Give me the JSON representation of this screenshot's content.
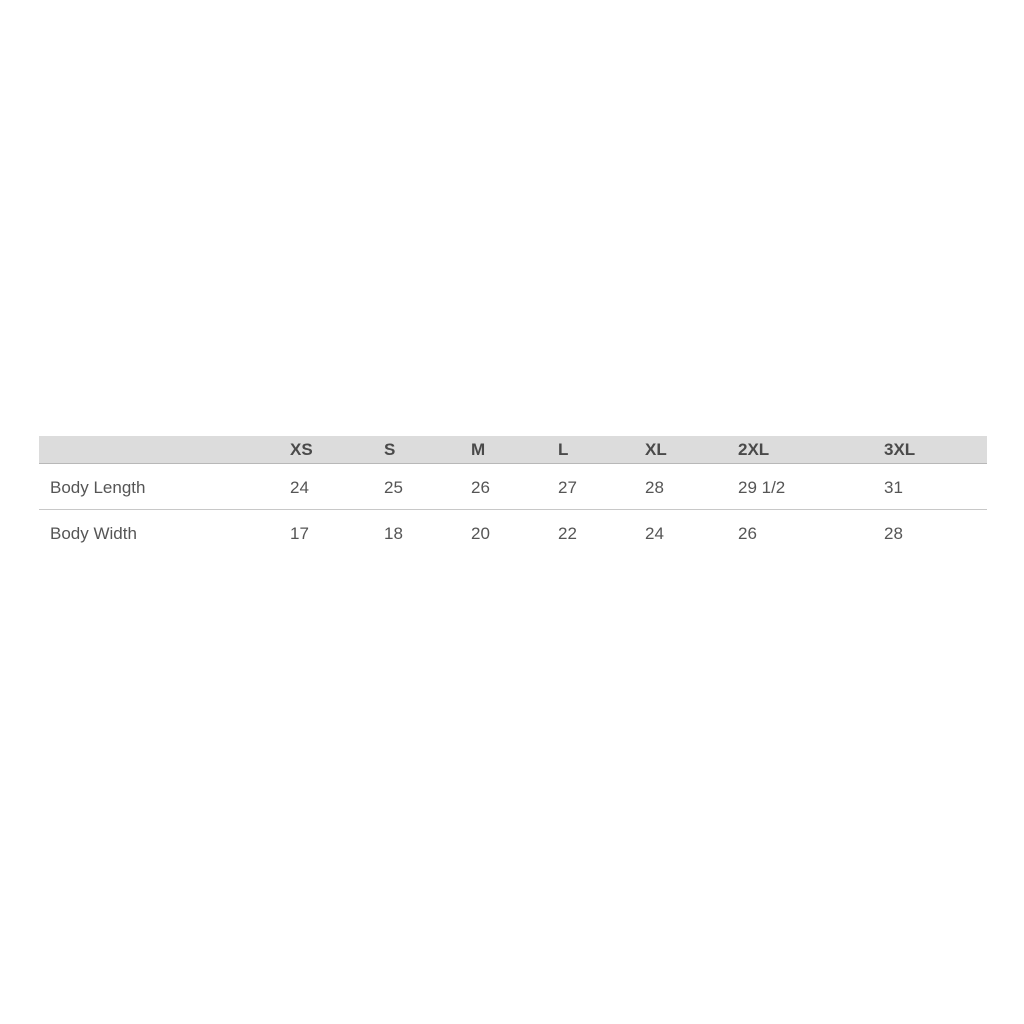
{
  "table": {
    "headers": [
      "",
      "XS",
      "S",
      "M",
      "L",
      "XL",
      "2XL",
      "3XL"
    ],
    "rows": [
      {
        "label": "Body Length",
        "values": [
          "24",
          "25",
          "26",
          "27",
          "28",
          "29 1/2",
          "31"
        ]
      },
      {
        "label": "Body Width",
        "values": [
          "17",
          "18",
          "20",
          "22",
          "24",
          "26",
          "28"
        ]
      }
    ]
  }
}
